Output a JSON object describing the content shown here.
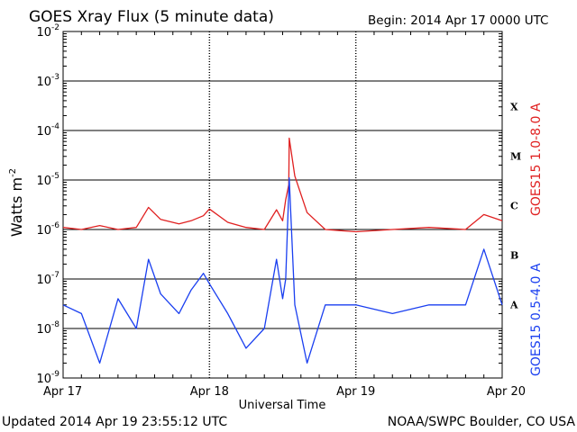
{
  "chart_data": {
    "type": "line",
    "title": "GOES Xray Flux (5 minute data)",
    "begin_label": "Begin:  2014 Apr 17 0000 UTC",
    "xlabel": "Universal Time",
    "ylabel": "Watts m",
    "ylabel_exponent": "-2",
    "yscale": "log",
    "ylim": [
      1e-09,
      0.01
    ],
    "xlim": [
      "2014-04-17 00:00",
      "2014-04-20 00:00"
    ],
    "x_ticks": [
      "Apr 17",
      "Apr 18",
      "Apr 19",
      "Apr 20"
    ],
    "y_ticks": [
      {
        "base": "10",
        "exp": "-2"
      },
      {
        "base": "10",
        "exp": "-3"
      },
      {
        "base": "10",
        "exp": "-4"
      },
      {
        "base": "10",
        "exp": "-5"
      },
      {
        "base": "10",
        "exp": "-6"
      },
      {
        "base": "10",
        "exp": "-7"
      },
      {
        "base": "10",
        "exp": "-8"
      },
      {
        "base": "10",
        "exp": "-9"
      }
    ],
    "flare_classes": [
      "X",
      "M",
      "C",
      "B",
      "A"
    ],
    "grid": true,
    "series": [
      {
        "name": "GOES15 1.0-8.0 A",
        "color": "#e02020",
        "points": [
          [
            "2014-04-17 00:00",
            1.1e-06
          ],
          [
            "2014-04-17 03:00",
            1e-06
          ],
          [
            "2014-04-17 06:00",
            1.2e-06
          ],
          [
            "2014-04-17 09:00",
            1e-06
          ],
          [
            "2014-04-17 12:00",
            1.1e-06
          ],
          [
            "2014-04-17 14:00",
            2.8e-06
          ],
          [
            "2014-04-17 16:00",
            1.6e-06
          ],
          [
            "2014-04-17 19:00",
            1.3e-06
          ],
          [
            "2014-04-17 21:00",
            1.5e-06
          ],
          [
            "2014-04-17 23:00",
            1.9e-06
          ],
          [
            "2014-04-18 00:00",
            2.6e-06
          ],
          [
            "2014-04-18 03:00",
            1.4e-06
          ],
          [
            "2014-04-18 06:00",
            1.1e-06
          ],
          [
            "2014-04-18 09:00",
            1e-06
          ],
          [
            "2014-04-18 11:00",
            2.5e-06
          ],
          [
            "2014-04-18 12:00",
            1.5e-06
          ],
          [
            "2014-04-18 12:30",
            4e-06
          ],
          [
            "2014-04-18 13:00",
            8e-06
          ],
          [
            "2014-04-18 13:05",
            7e-05
          ],
          [
            "2014-04-18 14:00",
            1.2e-05
          ],
          [
            "2014-04-18 16:00",
            2.2e-06
          ],
          [
            "2014-04-18 19:00",
            1e-06
          ],
          [
            "2014-04-19 00:00",
            9e-07
          ],
          [
            "2014-04-19 06:00",
            1e-06
          ],
          [
            "2014-04-19 12:00",
            1.1e-06
          ],
          [
            "2014-04-19 18:00",
            1e-06
          ],
          [
            "2014-04-19 21:00",
            2e-06
          ],
          [
            "2014-04-20 00:00",
            1.5e-06
          ]
        ]
      },
      {
        "name": "GOES15 0.5-4.0 A",
        "color": "#1a3ff0",
        "points": [
          [
            "2014-04-17 00:00",
            3e-08
          ],
          [
            "2014-04-17 03:00",
            2e-08
          ],
          [
            "2014-04-17 06:00",
            2e-09
          ],
          [
            "2014-04-17 09:00",
            4e-08
          ],
          [
            "2014-04-17 12:00",
            1e-08
          ],
          [
            "2014-04-17 14:00",
            2.5e-07
          ],
          [
            "2014-04-17 16:00",
            5e-08
          ],
          [
            "2014-04-17 19:00",
            2e-08
          ],
          [
            "2014-04-17 21:00",
            6e-08
          ],
          [
            "2014-04-17 23:00",
            1.3e-07
          ],
          [
            "2014-04-18 00:00",
            8e-08
          ],
          [
            "2014-04-18 03:00",
            2e-08
          ],
          [
            "2014-04-18 06:00",
            4e-09
          ],
          [
            "2014-04-18 09:00",
            1e-08
          ],
          [
            "2014-04-18 11:00",
            2.5e-07
          ],
          [
            "2014-04-18 12:00",
            4e-08
          ],
          [
            "2014-04-18 12:30",
            1e-07
          ],
          [
            "2014-04-18 13:05",
            1.1e-05
          ],
          [
            "2014-04-18 14:00",
            3e-08
          ],
          [
            "2014-04-18 16:00",
            2e-09
          ],
          [
            "2014-04-18 19:00",
            3e-08
          ],
          [
            "2014-04-19 00:00",
            3e-08
          ],
          [
            "2014-04-19 06:00",
            2e-08
          ],
          [
            "2014-04-19 12:00",
            3e-08
          ],
          [
            "2014-04-19 18:00",
            3e-08
          ],
          [
            "2014-04-19 21:00",
            4e-07
          ],
          [
            "2014-04-20 00:00",
            3e-08
          ]
        ]
      }
    ]
  },
  "footer": {
    "updated": "Updated 2014 Apr 19 23:55:12 UTC",
    "source": "NOAA/SWPC Boulder, CO USA"
  }
}
